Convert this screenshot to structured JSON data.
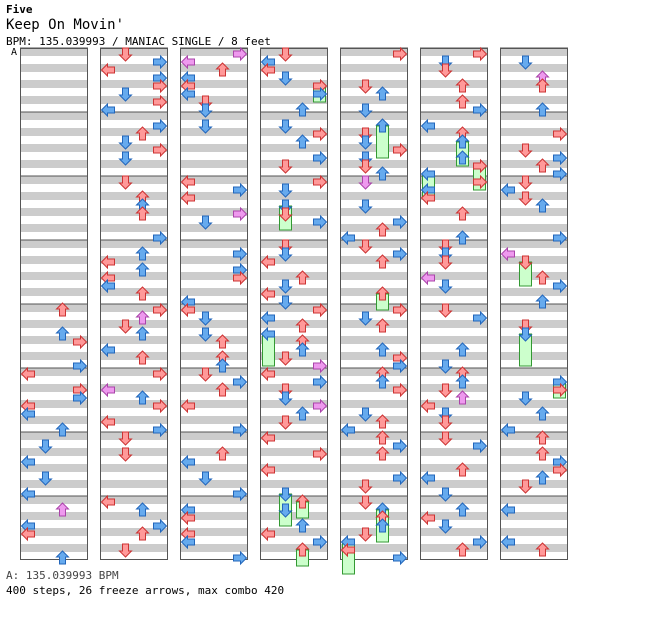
{
  "header": {
    "artist": "Five",
    "title": "Keep On Movin'",
    "bpm_line": "BPM: 135.039993 / MANIAC SINGLE / 8 feet",
    "section_marker": "A"
  },
  "footer": {
    "bpm_summary": "A: 135.039993 BPM",
    "stats": "400 steps, 26 freeze arrows, max combo 420"
  },
  "stepchart": {
    "columns_count": 7,
    "measures_per_column": 8,
    "lanes": [
      "left",
      "down",
      "up",
      "right"
    ],
    "colors": {
      "quarter_fill": "#ff9999",
      "quarter_stroke": "#cc3333",
      "eighth_fill": "#66aaee",
      "eighth_stroke": "#2266bb",
      "sixteenth_fill": "#ee99ee",
      "sixteenth_stroke": "#aa44aa",
      "freeze_fill": "#ccffcc",
      "freeze_stroke": "#339933",
      "stripe_gray": "#cccccc",
      "border": "#555555"
    }
  }
}
